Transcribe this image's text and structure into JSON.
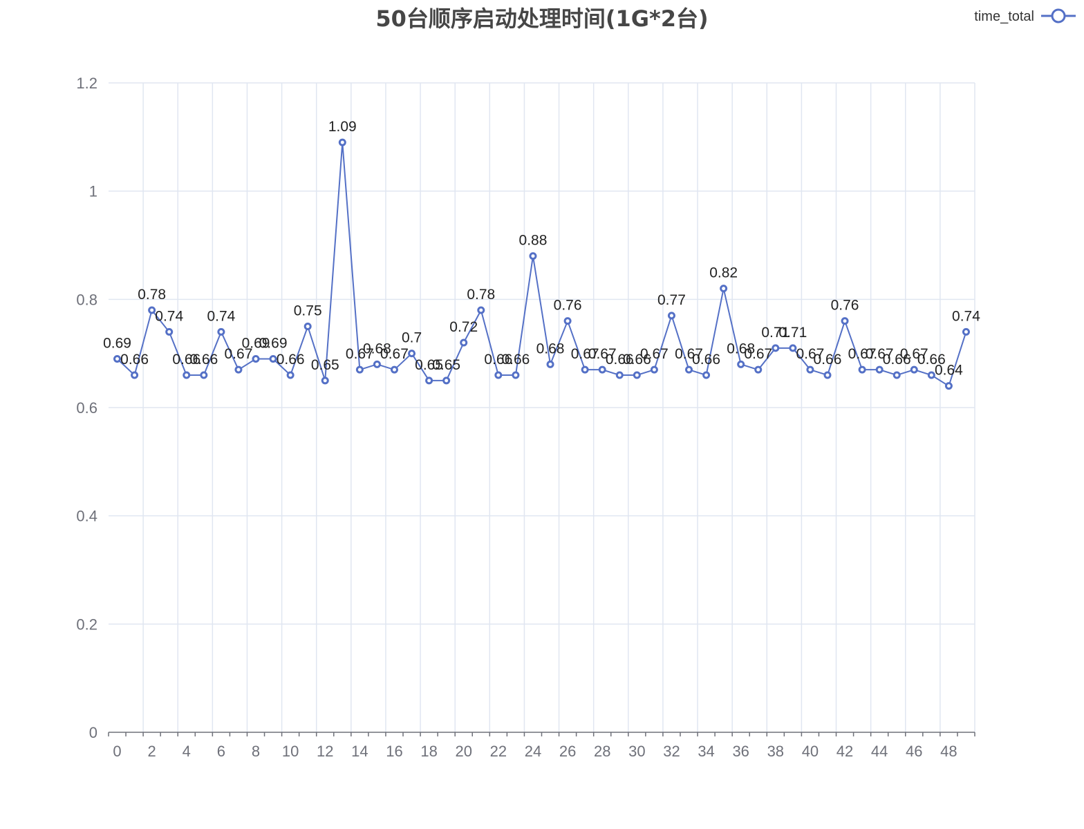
{
  "chart_data": {
    "type": "line",
    "title": "50台顺序启动处理时间(1G*2台)",
    "legend": {
      "position": "top-right"
    },
    "xlabel": "",
    "ylabel": "",
    "ylim": [
      0,
      1.2
    ],
    "yticks": [
      "0",
      "0.2",
      "0.4",
      "0.6",
      "0.8",
      "1",
      "1.2"
    ],
    "xtick_labels": [
      "0",
      "2",
      "4",
      "6",
      "8",
      "10",
      "12",
      "14",
      "16",
      "18",
      "20",
      "22",
      "24",
      "26",
      "28",
      "30",
      "32",
      "34",
      "36",
      "38",
      "40",
      "42",
      "44",
      "46",
      "48"
    ],
    "grid": true,
    "x": [
      0,
      1,
      2,
      3,
      4,
      5,
      6,
      7,
      8,
      9,
      10,
      11,
      12,
      13,
      14,
      15,
      16,
      17,
      18,
      19,
      20,
      21,
      22,
      23,
      24,
      25,
      26,
      27,
      28,
      29,
      30,
      31,
      32,
      33,
      34,
      35,
      36,
      37,
      38,
      39,
      40,
      41,
      42,
      43,
      44,
      45,
      46,
      47,
      48,
      49
    ],
    "series": [
      {
        "name": "time_total",
        "color": "#5470c6",
        "values": [
          0.69,
          0.66,
          0.78,
          0.74,
          0.66,
          0.66,
          0.74,
          0.67,
          0.69,
          0.69,
          0.66,
          0.75,
          0.65,
          1.09,
          0.67,
          0.68,
          0.67,
          0.7,
          0.65,
          0.65,
          0.72,
          0.78,
          0.66,
          0.66,
          0.88,
          0.68,
          0.76,
          0.67,
          0.67,
          0.66,
          0.66,
          0.67,
          0.77,
          0.67,
          0.66,
          0.82,
          0.68,
          0.67,
          0.71,
          0.71,
          0.67,
          0.66,
          0.76,
          0.67,
          0.67,
          0.66,
          0.67,
          0.66,
          0.64,
          0.74
        ],
        "labels": [
          "0.69",
          "0.66",
          "0.78",
          "0.74",
          "0.66",
          "0.66",
          "0.74",
          "0.67",
          "0.69",
          "0.69",
          "0.66",
          "0.75",
          "0.65",
          "1.09",
          "0.67",
          "0.68",
          "0.67",
          "0.7",
          "0.65",
          "0.65",
          "0.72",
          "0.78",
          "0.66",
          "0.66",
          "0.88",
          "0.68",
          "0.76",
          "0.67",
          "0.67",
          "0.66",
          "0.66",
          "0.67",
          "0.77",
          "0.67",
          "0.66",
          "0.82",
          "0.68",
          "0.67",
          "0.71",
          "0.71",
          "0.67",
          "0.66",
          "0.76",
          "0.67",
          "0.67",
          "0.66",
          "0.67",
          "0.66",
          "0.64",
          "0.74"
        ]
      }
    ]
  }
}
